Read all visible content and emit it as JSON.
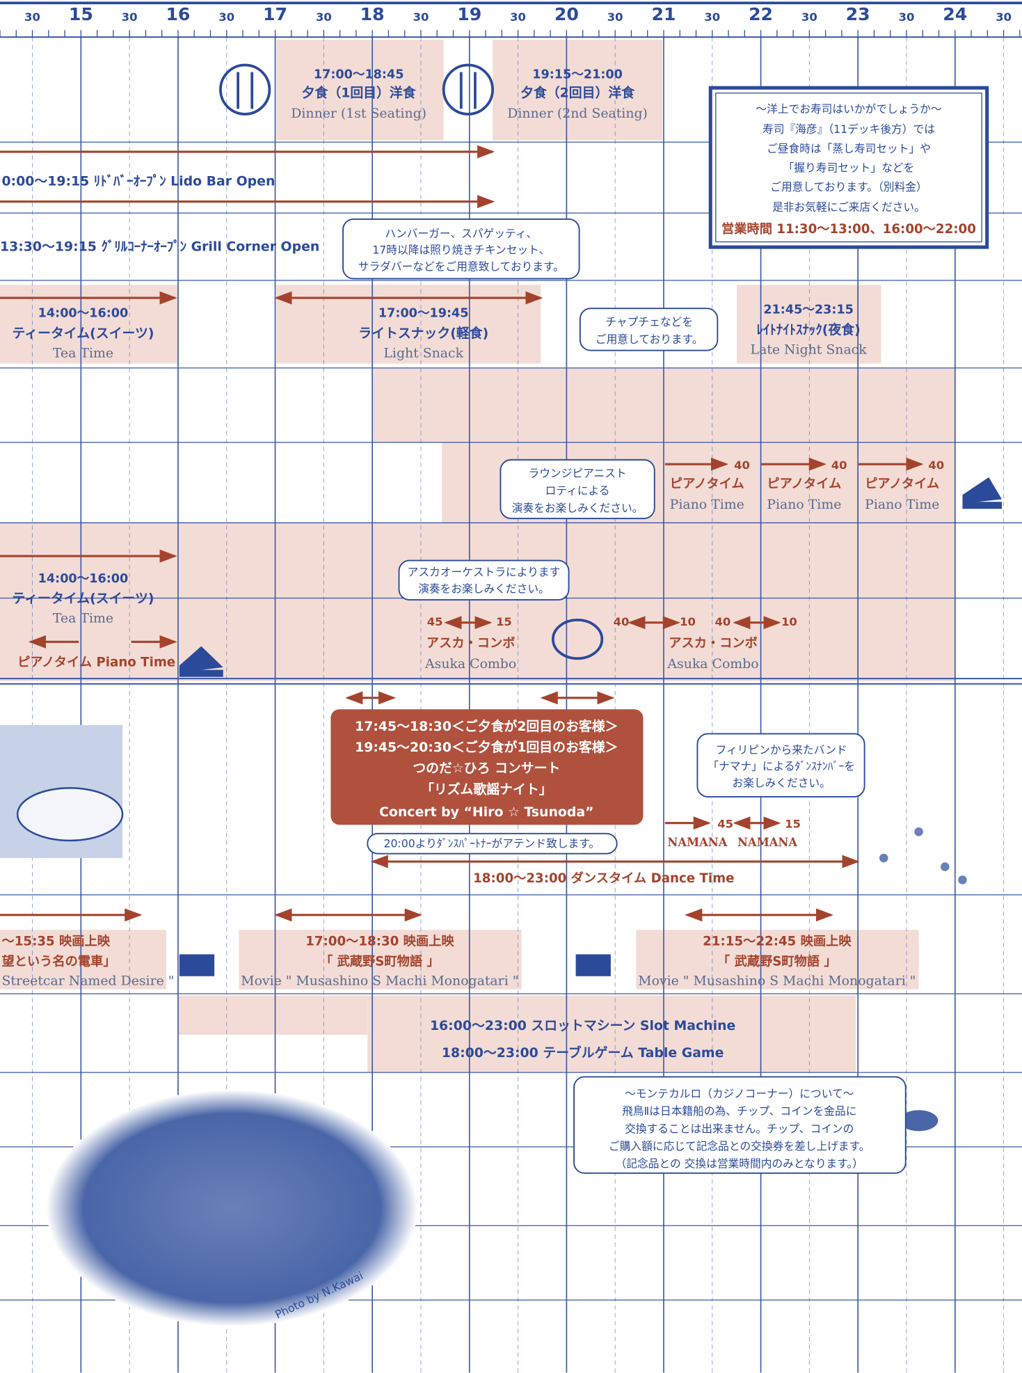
{
  "header": {
    "ticks": [
      "30",
      "15",
      "30",
      "16",
      "30",
      "17",
      "30",
      "18",
      "30",
      "19",
      "30",
      "20",
      "30",
      "21",
      "30",
      "22",
      "30",
      "23",
      "30",
      "24",
      "30"
    ]
  },
  "items": {
    "dinner_1": [
      "17:00〜18:45",
      "夕食（1回目）洋食",
      "Dinner (1st Seating)"
    ],
    "dinner_2": [
      "19:15〜21:00",
      "夕食（2回目）洋食",
      "Dinner (2nd Seating)"
    ],
    "lido": [
      "0:00〜19:15 ﾘﾄﾞﾊﾞｰｵｰﾌﾟﾝ Lido Bar Open"
    ],
    "grill": [
      "13:30〜19:15 ｸﾞﾘﾙｺｰﾅｰｵｰﾌﾟﾝ Grill Corner Open"
    ],
    "hamburger_note": [
      "ハンバーガー、スパゲッティ、",
      "17時以降は照り焼きチキンセット、",
      "サラダバーなどをご用意致しております。"
    ],
    "sushi": [
      "〜洋上でお寿司はいかがでしょうか〜",
      "寿司『海彦』（11デッキ後方）では",
      "ご昼食時は「蒸し寿司セット」や",
      "「握り寿司セット」などを",
      "ご用意しております。（別料金）",
      "是非お気軽にご来店ください。",
      "営業時間 11:30〜13:00、16:00〜22:00"
    ],
    "tea_1": [
      "14:00〜16:00",
      "ティータイム(スイーツ)",
      "Tea Time"
    ],
    "light_snack": [
      "17:00〜19:45",
      "ライトスナック(軽食)",
      "Light Snack"
    ],
    "chapche_note": [
      "チャプチェなどを",
      "ご用意しております。"
    ],
    "late_night": [
      "21:45〜23:15",
      "ﾚｲﾄﾅｲﾄｽﾅｯｸ(夜食)",
      "Late Night Snack"
    ],
    "piano_note": [
      "ラウンジピアニスト",
      "ロティによる",
      "演奏をお楽しみください。"
    ],
    "piano_1": [
      "40",
      "ピアノタイム",
      "Piano Time"
    ],
    "piano_2": [
      "40",
      "ピアノタイム",
      "Piano Time"
    ],
    "piano_3": [
      "40",
      "ピアノタイム",
      "Piano Time"
    ],
    "tea_2": [
      "14:00〜16:00",
      "ティータイム(スイーツ)",
      "Tea Time"
    ],
    "piano_lower": [
      "ピアノタイム Piano Time"
    ],
    "orchestra_note": [
      "アスカオーケストラによります",
      "演奏をお楽しみください。"
    ],
    "asuka_1": [
      "45",
      "15",
      "アスカ・コンボ",
      "Asuka Combo"
    ],
    "asuka_2": [
      "40",
      "10",
      "40",
      "10",
      "アスカ・コンボ",
      "Asuka Combo"
    ],
    "concert": [
      "17:45〜18:30＜ご夕食が2回目のお客様＞",
      "19:45〜20:30＜ご夕食が1回目のお客様＞",
      "つのだ☆ひろ コンサート",
      "「リズム歌謡ナイト」",
      "Concert by “Hiro ☆ Tsunoda”"
    ],
    "band_note": [
      "フィリピンから来たバンド",
      "「ナマナ」によるﾀﾞﾝｽﾅﾝﾊﾞｰを",
      "お楽しみください。"
    ],
    "namana": [
      "45",
      "15",
      "NAMANA",
      "NAMANA"
    ],
    "partner_note": [
      "20:00よりﾀﾞﾝｽﾊﾟｰﾄﾅｰがアテンド致します。"
    ],
    "dance": [
      "18:00〜23:00 ダンスタイム Dance Time"
    ],
    "movie_1": [
      "〜15:35 映画上映",
      "望という名の電車」",
      "Streetcar Named Desire \""
    ],
    "movie_2": [
      "17:00〜18:30 映画上映",
      "「 武蔵野S町物語 」",
      "Movie \" Musashino S Machi Monogatari \""
    ],
    "movie_3": [
      "21:15〜22:45 映画上映",
      "「 武蔵野S町物語 」",
      "Movie \" Musashino S Machi Monogatari \""
    ],
    "casino_games": [
      "16:00〜23:00 スロットマシーン Slot Machine",
      "18:00〜23:00 テーブルゲーム Table Game"
    ],
    "casino_note": [
      "〜モンテカルロ（カジノコーナー）について〜",
      "飛鳥Ⅱは日本籍船の為、チップ、コインを金品に",
      "交換することは出来ません。チップ、コインの",
      "ご購入額に応じて記念品との交換券を差し上げます。",
      "（記念品との 交換は営業時間内のみとなります。）"
    ],
    "photo_credit": [
      "Photo by N.Kawai"
    ]
  }
}
